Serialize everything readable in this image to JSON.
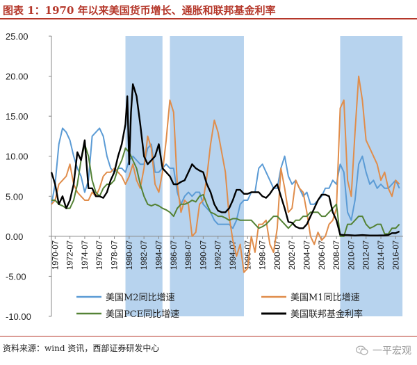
{
  "header": {
    "title": "图表 1：1970 年以来美国货币增长、通胀和联邦基金利率"
  },
  "footer": {
    "source": "资料来源：wind 资讯，西部证券研发中心",
    "watermark": "一平宏观",
    "watermark_icon": "wechat-icon"
  },
  "colors": {
    "title": "#b5372a",
    "recession": "#b7d3ee",
    "m2": "#5b9bd5",
    "m1": "#e08d4b",
    "pce": "#548235",
    "ffr": "#000000"
  },
  "chart_data": {
    "type": "line",
    "title": "",
    "xlabel": "",
    "ylabel": "",
    "xlim": [
      "1970-01",
      "2017-06"
    ],
    "ylim": [
      -10,
      25
    ],
    "yticks": [
      "25.00",
      "20.00",
      "15.00",
      "10.00",
      "5.00",
      "0.00",
      "-5.00",
      "-10.00"
    ],
    "xticks": [
      "1970-07",
      "1972-07",
      "1974-07",
      "1976-07",
      "1978-07",
      "1980-07",
      "1982-07",
      "1984-07",
      "1986-07",
      "1988-07",
      "1990-07",
      "1992-07",
      "1994-07",
      "1996-07",
      "1998-07",
      "2000-07",
      "2002-07",
      "2004-07",
      "2006-07",
      "2008-07",
      "2010-07",
      "2012-07",
      "2014-07",
      "2016-07"
    ],
    "grid": false,
    "legend_position": "bottom",
    "shaded_periods": [
      {
        "start": "1980-01",
        "end": "1985-01"
      },
      {
        "start": "1986-01",
        "end": "1996-01"
      },
      {
        "start": "2009-01",
        "end": "2017-06"
      }
    ],
    "series": [
      {
        "name": "美国M2同比增速",
        "color": "#5b9bd5",
        "x": [
          1970.0,
          1970.5,
          1971.0,
          1971.5,
          1972.0,
          1972.5,
          1973.0,
          1973.5,
          1974.0,
          1974.5,
          1975.0,
          1975.5,
          1976.0,
          1976.5,
          1977.0,
          1977.5,
          1978.0,
          1978.5,
          1979.0,
          1979.5,
          1980.0,
          1980.5,
          1981.0,
          1981.5,
          1982.0,
          1982.5,
          1983.0,
          1983.5,
          1984.0,
          1984.5,
          1985.0,
          1985.5,
          1986.0,
          1986.5,
          1987.0,
          1987.5,
          1988.0,
          1988.5,
          1989.0,
          1989.5,
          1990.0,
          1990.5,
          1991.0,
          1991.5,
          1992.0,
          1992.5,
          1993.0,
          1993.5,
          1994.0,
          1994.5,
          1995.0,
          1995.5,
          1996.0,
          1996.5,
          1997.0,
          1997.5,
          1998.0,
          1998.5,
          1999.0,
          1999.5,
          2000.0,
          2000.5,
          2001.0,
          2001.5,
          2002.0,
          2002.5,
          2003.0,
          2003.5,
          2004.0,
          2004.5,
          2005.0,
          2005.5,
          2006.0,
          2006.5,
          2007.0,
          2007.5,
          2008.0,
          2008.5,
          2009.0,
          2009.5,
          2010.0,
          2010.5,
          2011.0,
          2011.5,
          2012.0,
          2012.5,
          2013.0,
          2013.5,
          2014.0,
          2014.5,
          2015.0,
          2015.5,
          2016.0,
          2016.5,
          2017.0
        ],
        "values": [
          4.0,
          6.5,
          11.5,
          13.5,
          13.0,
          12.0,
          10.0,
          8.5,
          7.5,
          5.5,
          7.0,
          12.5,
          13.0,
          13.5,
          12.5,
          10.0,
          8.5,
          8.0,
          8.5,
          8.5,
          8.0,
          9.5,
          10.0,
          9.5,
          9.0,
          9.0,
          11.0,
          11.5,
          8.0,
          8.0,
          8.5,
          9.0,
          8.5,
          8.5,
          5.5,
          4.0,
          5.0,
          5.5,
          5.0,
          5.5,
          5.5,
          4.0,
          3.5,
          3.0,
          2.0,
          1.5,
          1.5,
          1.5,
          1.5,
          1.0,
          2.0,
          4.0,
          4.5,
          4.5,
          5.5,
          5.5,
          8.5,
          9.0,
          8.0,
          7.0,
          6.0,
          6.0,
          8.5,
          10.0,
          7.5,
          6.5,
          7.0,
          6.0,
          5.0,
          5.5,
          4.0,
          4.0,
          4.5,
          5.0,
          6.0,
          6.0,
          7.0,
          6.5,
          9.0,
          8.0,
          3.0,
          2.0,
          4.5,
          9.0,
          10.0,
          8.0,
          6.5,
          7.0,
          6.0,
          6.5,
          6.0,
          6.0,
          6.5,
          7.0,
          6.0
        ]
      },
      {
        "name": "美国M1同比增速",
        "color": "#e08d4b",
        "x": [
          1970.0,
          1970.5,
          1971.0,
          1971.5,
          1972.0,
          1972.5,
          1973.0,
          1973.5,
          1974.0,
          1974.5,
          1975.0,
          1975.5,
          1976.0,
          1976.5,
          1977.0,
          1977.5,
          1978.0,
          1978.5,
          1979.0,
          1979.5,
          1980.0,
          1980.5,
          1981.0,
          1981.5,
          1982.0,
          1982.5,
          1983.0,
          1983.5,
          1984.0,
          1984.5,
          1985.0,
          1985.5,
          1986.0,
          1986.5,
          1987.0,
          1987.5,
          1988.0,
          1988.5,
          1989.0,
          1989.5,
          1990.0,
          1990.5,
          1991.0,
          1991.5,
          1992.0,
          1992.5,
          1993.0,
          1993.5,
          1994.0,
          1994.5,
          1995.0,
          1995.5,
          1996.0,
          1996.5,
          1997.0,
          1997.5,
          1998.0,
          1998.5,
          1999.0,
          1999.5,
          2000.0,
          2000.5,
          2001.0,
          2001.5,
          2002.0,
          2002.5,
          2003.0,
          2003.5,
          2004.0,
          2004.5,
          2005.0,
          2005.5,
          2006.0,
          2006.5,
          2007.0,
          2007.5,
          2008.0,
          2008.5,
          2009.0,
          2009.5,
          2010.0,
          2010.5,
          2011.0,
          2011.5,
          2012.0,
          2012.5,
          2013.0,
          2013.5,
          2014.0,
          2014.5,
          2015.0,
          2015.5,
          2016.0,
          2016.5,
          2017.0
        ],
        "values": [
          4.0,
          4.5,
          6.5,
          7.0,
          7.5,
          9.0,
          6.5,
          5.5,
          5.0,
          4.5,
          4.5,
          5.5,
          5.0,
          6.0,
          7.5,
          8.0,
          8.0,
          8.5,
          8.0,
          7.5,
          6.5,
          7.5,
          9.0,
          7.0,
          6.0,
          8.5,
          12.5,
          11.0,
          6.5,
          5.5,
          8.0,
          12.0,
          17.0,
          15.5,
          6.5,
          3.0,
          4.5,
          4.0,
          0.0,
          0.5,
          4.0,
          4.5,
          7.5,
          11.5,
          14.5,
          13.0,
          10.5,
          8.0,
          2.5,
          -0.5,
          -2.5,
          -1.0,
          -4.5,
          -4.0,
          0.0,
          -2.0,
          1.5,
          1.5,
          2.0,
          -1.0,
          -2.0,
          1.0,
          8.5,
          6.0,
          3.0,
          3.5,
          7.0,
          6.0,
          5.5,
          3.0,
          0.0,
          -1.0,
          0.5,
          -0.5,
          0.0,
          1.5,
          2.0,
          3.5,
          16.0,
          17.0,
          7.0,
          5.0,
          13.0,
          20.0,
          17.0,
          12.0,
          11.0,
          10.0,
          9.0,
          7.0,
          8.0,
          6.0,
          5.0,
          7.0,
          6.5
        ]
      },
      {
        "name": "美国PCE同比增速",
        "color": "#548235",
        "x": [
          1970.0,
          1970.5,
          1971.0,
          1971.5,
          1972.0,
          1972.5,
          1973.0,
          1973.5,
          1974.0,
          1974.5,
          1975.0,
          1975.5,
          1976.0,
          1976.5,
          1977.0,
          1977.5,
          1978.0,
          1978.5,
          1979.0,
          1979.5,
          1980.0,
          1980.5,
          1981.0,
          1981.5,
          1982.0,
          1982.5,
          1983.0,
          1983.5,
          1984.0,
          1984.5,
          1985.0,
          1985.5,
          1986.0,
          1986.5,
          1987.0,
          1987.5,
          1988.0,
          1988.5,
          1989.0,
          1989.5,
          1990.0,
          1990.5,
          1991.0,
          1991.5,
          1992.0,
          1992.5,
          1993.0,
          1993.5,
          1994.0,
          1994.5,
          1995.0,
          1995.5,
          1996.0,
          1996.5,
          1997.0,
          1997.5,
          1998.0,
          1998.5,
          1999.0,
          1999.5,
          2000.0,
          2000.5,
          2001.0,
          2001.5,
          2002.0,
          2002.5,
          2003.0,
          2003.5,
          2004.0,
          2004.5,
          2005.0,
          2005.5,
          2006.0,
          2006.5,
          2007.0,
          2007.5,
          2008.0,
          2008.5,
          2009.0,
          2009.5,
          2010.0,
          2010.5,
          2011.0,
          2011.5,
          2012.0,
          2012.5,
          2013.0,
          2013.5,
          2014.0,
          2014.5,
          2015.0,
          2015.5,
          2016.0,
          2016.5,
          2017.0
        ],
        "values": [
          4.5,
          4.5,
          4.0,
          3.8,
          3.5,
          3.5,
          4.5,
          6.5,
          9.5,
          11.5,
          10.0,
          7.0,
          5.5,
          5.0,
          6.0,
          6.5,
          6.5,
          7.0,
          8.5,
          9.5,
          11.0,
          10.5,
          9.5,
          8.5,
          6.5,
          5.0,
          4.0,
          3.8,
          4.0,
          3.8,
          3.5,
          3.3,
          3.0,
          2.5,
          3.5,
          4.0,
          4.0,
          4.2,
          4.5,
          4.3,
          5.0,
          5.2,
          4.0,
          3.0,
          2.8,
          2.5,
          2.5,
          2.3,
          2.0,
          2.2,
          2.2,
          2.0,
          2.0,
          2.0,
          2.0,
          1.5,
          1.0,
          1.2,
          1.5,
          2.0,
          2.5,
          2.5,
          2.0,
          1.5,
          1.0,
          1.5,
          2.0,
          2.0,
          2.5,
          2.5,
          3.0,
          3.0,
          3.0,
          2.5,
          2.5,
          3.0,
          3.5,
          4.0,
          0.0,
          0.0,
          1.5,
          1.5,
          2.0,
          2.5,
          2.5,
          1.5,
          1.0,
          1.2,
          1.5,
          1.5,
          0.3,
          0.3,
          1.0,
          1.0,
          1.5
        ]
      },
      {
        "name": "美国联邦基金利率",
        "color": "#000000",
        "x": [
          1970.0,
          1970.5,
          1971.0,
          1971.5,
          1972.0,
          1972.5,
          1973.0,
          1973.5,
          1974.0,
          1974.5,
          1975.0,
          1975.5,
          1976.0,
          1976.5,
          1977.0,
          1977.5,
          1978.0,
          1978.5,
          1979.0,
          1979.5,
          1980.0,
          1980.25,
          1980.5,
          1980.75,
          1981.0,
          1981.5,
          1982.0,
          1982.5,
          1983.0,
          1983.5,
          1984.0,
          1984.5,
          1985.0,
          1985.5,
          1986.0,
          1986.5,
          1987.0,
          1987.5,
          1988.0,
          1988.5,
          1989.0,
          1989.5,
          1990.0,
          1990.5,
          1991.0,
          1991.5,
          1992.0,
          1992.5,
          1993.0,
          1993.5,
          1994.0,
          1994.5,
          1995.0,
          1995.5,
          1996.0,
          1996.5,
          1997.0,
          1997.5,
          1998.0,
          1998.5,
          1999.0,
          1999.5,
          2000.0,
          2000.5,
          2001.0,
          2001.5,
          2002.0,
          2002.5,
          2003.0,
          2003.5,
          2004.0,
          2004.5,
          2005.0,
          2005.5,
          2006.0,
          2006.5,
          2007.0,
          2007.5,
          2008.0,
          2008.5,
          2009.0,
          2009.5,
          2010.0,
          2011.0,
          2012.0,
          2013.0,
          2014.0,
          2015.0,
          2015.5,
          2016.0,
          2016.5,
          2017.0
        ],
        "values": [
          8.0,
          6.5,
          4.0,
          5.0,
          3.5,
          4.5,
          6.5,
          10.5,
          9.5,
          12.0,
          6.0,
          6.0,
          5.0,
          5.0,
          4.8,
          5.5,
          7.0,
          8.0,
          10.0,
          11.5,
          14.0,
          17.5,
          9.0,
          15.5,
          19.0,
          17.5,
          14.0,
          10.0,
          9.0,
          9.5,
          10.0,
          11.5,
          8.5,
          8.0,
          7.5,
          6.5,
          6.5,
          6.8,
          7.0,
          8.0,
          9.0,
          8.5,
          8.2,
          8.0,
          6.5,
          5.5,
          4.0,
          3.2,
          3.0,
          3.0,
          3.5,
          4.5,
          5.8,
          5.8,
          5.3,
          5.3,
          5.5,
          5.5,
          5.5,
          5.0,
          4.8,
          5.3,
          6.0,
          6.5,
          5.0,
          3.5,
          1.8,
          1.7,
          1.2,
          1.0,
          1.0,
          1.5,
          2.5,
          3.5,
          4.5,
          5.2,
          5.2,
          5.0,
          3.0,
          2.0,
          0.2,
          0.15,
          0.15,
          0.1,
          0.15,
          0.1,
          0.1,
          0.12,
          0.15,
          0.4,
          0.4,
          0.6
        ]
      }
    ]
  }
}
